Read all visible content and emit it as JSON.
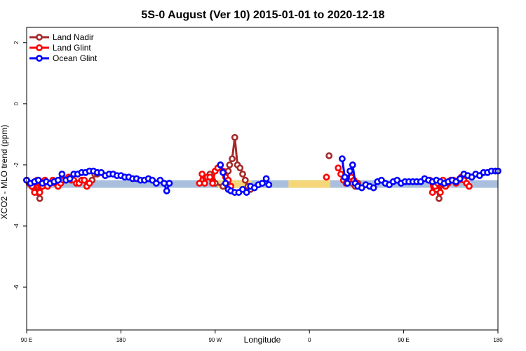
{
  "chart_data": {
    "type": "line",
    "title": "5S-0 August (Ver 10)   2015-01-01 to 2020-12-18",
    "xlabel": "Longitude",
    "ylabel": "XCO2 - MLO trend (ppm)",
    "xlim": [
      90,
      450
    ],
    "ylim": [
      -7.4,
      2.5
    ],
    "x_ticks": [
      {
        "value": 90,
        "label": "90 E"
      },
      {
        "value": 162,
        "label": "180"
      },
      {
        "value": 234,
        "label": "90 W"
      },
      {
        "value": 306,
        "label": "0"
      },
      {
        "value": 378,
        "label": "90 E"
      },
      {
        "value": 450,
        "label": "180"
      }
    ],
    "y_ticks": [
      {
        "value": 2,
        "label": "2"
      },
      {
        "value": 0,
        "label": "0"
      },
      {
        "value": -2,
        "label": "-2"
      },
      {
        "value": -4,
        "label": "-4"
      },
      {
        "value": -6,
        "label": "-6"
      }
    ],
    "bands": [
      {
        "x0": 90,
        "x1": 450,
        "y0": -2.75,
        "y1": -2.5,
        "color": "#a9bfdd"
      },
      {
        "x0": 236,
        "x1": 262,
        "y0": -2.75,
        "y1": -2.5,
        "color": "#f5d77a"
      },
      {
        "x0": 290,
        "x1": 322,
        "y0": -2.75,
        "y1": -2.5,
        "color": "#f5d77a"
      }
    ],
    "legend_position": "top-left",
    "grid": false,
    "series": [
      {
        "name": "Land Nadir",
        "color": "#a52a2a",
        "segments": [
          [
            [
              90,
              -2.5
            ],
            [
              92,
              -2.6
            ],
            [
              94,
              -2.7
            ],
            [
              96,
              -2.8
            ],
            [
              98,
              -2.9
            ],
            [
              100,
              -3.1
            ],
            [
              102,
              -2.7
            ],
            [
              104,
              -2.6
            ]
          ],
          [
            [
              140,
              -2.5
            ],
            [
              142,
              -2.3
            ],
            [
              144,
              -2.3
            ]
          ],
          [
            [
              230,
              -2.3
            ],
            [
              232,
              -2.5
            ],
            [
              234,
              -2.6
            ],
            [
              240,
              -2.7
            ],
            [
              243,
              -2.5
            ],
            [
              244,
              -2.2
            ],
            [
              245,
              -2.0
            ],
            [
              247,
              -1.8
            ],
            [
              249,
              -1.1
            ],
            [
              251,
              -2.0
            ],
            [
              253,
              -2.1
            ],
            [
              255,
              -2.3
            ],
            [
              257,
              -2.5
            ],
            [
              259,
              -2.7
            ],
            [
              261,
              -2.8
            ]
          ],
          [
            [
              321,
              -1.7
            ]
          ],
          [
            [
              335,
              -2.5
            ],
            [
              337,
              -2.4
            ],
            [
              339,
              -2.6
            ],
            [
              341,
              -2.7
            ],
            [
              343,
              -2.6
            ]
          ],
          [
            [
              403,
              -2.8
            ],
            [
              405,
              -3.1
            ],
            [
              407,
              -2.6
            ]
          ]
        ]
      },
      {
        "name": "Land Glint",
        "color": "#ff0000",
        "segments": [
          [
            [
              90,
              -2.5
            ],
            [
              92,
              -2.6
            ],
            [
              94,
              -2.7
            ],
            [
              96,
              -2.9
            ],
            [
              98,
              -2.5
            ],
            [
              100,
              -2.9
            ],
            [
              102,
              -2.7
            ],
            [
              104,
              -2.5
            ],
            [
              106,
              -2.7
            ],
            [
              108,
              -2.6
            ],
            [
              110,
              -2.5
            ],
            [
              112,
              -2.6
            ],
            [
              114,
              -2.7
            ],
            [
              116,
              -2.6
            ],
            [
              118,
              -2.5
            ],
            [
              120,
              -2.5
            ],
            [
              122,
              -2.4
            ],
            [
              124,
              -2.5
            ],
            [
              126,
              -2.5
            ],
            [
              128,
              -2.6
            ],
            [
              130,
              -2.6
            ],
            [
              132,
              -2.5
            ],
            [
              134,
              -2.5
            ],
            [
              136,
              -2.7
            ],
            [
              138,
              -2.6
            ]
          ],
          [
            [
              222,
              -2.6
            ],
            [
              224,
              -2.3
            ],
            [
              226,
              -2.6
            ],
            [
              228,
              -2.4
            ],
            [
              230,
              -2.4
            ],
            [
              232,
              -2.6
            ],
            [
              234,
              -2.2
            ],
            [
              236,
              -2.1
            ],
            [
              238,
              -2.0
            ],
            [
              240,
              -2.2
            ],
            [
              242,
              -2.4
            ],
            [
              244,
              -2.5
            ],
            [
              246,
              -2.7
            ]
          ],
          [
            [
              319,
              -2.4
            ]
          ],
          [
            [
              328,
              -2.1
            ],
            [
              330,
              -2.3
            ],
            [
              332,
              -2.5
            ],
            [
              334,
              -2.6
            ],
            [
              336,
              -2.5
            ],
            [
              338,
              -2.4
            ],
            [
              340,
              -2.5
            ],
            [
              342,
              -2.6
            ]
          ],
          [
            [
              398,
              -2.5
            ],
            [
              400,
              -2.9
            ],
            [
              402,
              -2.7
            ],
            [
              404,
              -2.6
            ],
            [
              406,
              -2.9
            ],
            [
              408,
              -2.5
            ],
            [
              410,
              -2.7
            ],
            [
              412,
              -2.6
            ],
            [
              414,
              -2.5
            ],
            [
              416,
              -2.5
            ],
            [
              418,
              -2.6
            ],
            [
              420,
              -2.5
            ],
            [
              422,
              -2.4
            ],
            [
              424,
              -2.5
            ],
            [
              426,
              -2.6
            ],
            [
              428,
              -2.7
            ]
          ]
        ]
      },
      {
        "name": "Ocean Glint",
        "color": "#0000ff",
        "segments": [
          [
            [
              90,
              -2.5
            ],
            [
              93,
              -2.6
            ],
            [
              96,
              -2.55
            ],
            [
              99,
              -2.5
            ],
            [
              102,
              -2.6
            ],
            [
              105,
              -2.55
            ],
            [
              108,
              -2.6
            ],
            [
              111,
              -2.55
            ],
            [
              114,
              -2.5
            ],
            [
              117,
              -2.3
            ],
            [
              120,
              -2.5
            ],
            [
              123,
              -2.45
            ],
            [
              126,
              -2.3
            ],
            [
              129,
              -2.3
            ],
            [
              132,
              -2.25
            ],
            [
              135,
              -2.25
            ],
            [
              138,
              -2.2
            ],
            [
              141,
              -2.2
            ],
            [
              144,
              -2.25
            ],
            [
              147,
              -2.25
            ],
            [
              150,
              -2.35
            ],
            [
              153,
              -2.3
            ],
            [
              156,
              -2.3
            ],
            [
              159,
              -2.35
            ],
            [
              162,
              -2.35
            ],
            [
              165,
              -2.4
            ],
            [
              168,
              -2.4
            ],
            [
              171,
              -2.45
            ],
            [
              174,
              -2.45
            ],
            [
              177,
              -2.5
            ],
            [
              180,
              -2.5
            ],
            [
              183,
              -2.45
            ],
            [
              186,
              -2.5
            ],
            [
              189,
              -2.6
            ],
            [
              192,
              -2.5
            ],
            [
              195,
              -2.6
            ],
            [
              197,
              -2.85
            ],
            [
              199,
              -2.6
            ]
          ],
          [
            [
              238,
              -2.0
            ],
            [
              240,
              -2.25
            ],
            [
              242,
              -2.6
            ],
            [
              244,
              -2.8
            ],
            [
              246,
              -2.85
            ],
            [
              249,
              -2.9
            ],
            [
              252,
              -2.9
            ],
            [
              255,
              -2.8
            ],
            [
              258,
              -2.9
            ],
            [
              261,
              -2.7
            ],
            [
              264,
              -2.75
            ],
            [
              267,
              -2.65
            ],
            [
              270,
              -2.6
            ],
            [
              273,
              -2.45
            ],
            [
              275,
              -2.65
            ]
          ],
          [
            [
              331,
              -1.8
            ],
            [
              333,
              -2.4
            ],
            [
              335,
              -2.6
            ],
            [
              337,
              -2.2
            ],
            [
              339,
              -2.0
            ],
            [
              341,
              -2.6
            ],
            [
              343,
              -2.7
            ],
            [
              346,
              -2.75
            ],
            [
              349,
              -2.65
            ],
            [
              352,
              -2.7
            ],
            [
              355,
              -2.75
            ],
            [
              358,
              -2.55
            ],
            [
              361,
              -2.5
            ],
            [
              364,
              -2.6
            ],
            [
              367,
              -2.65
            ],
            [
              370,
              -2.55
            ],
            [
              373,
              -2.5
            ],
            [
              376,
              -2.6
            ],
            [
              379,
              -2.55
            ],
            [
              382,
              -2.55
            ],
            [
              385,
              -2.55
            ],
            [
              388,
              -2.55
            ],
            [
              391,
              -2.55
            ],
            [
              394,
              -2.45
            ],
            [
              397,
              -2.5
            ],
            [
              400,
              -2.55
            ],
            [
              403,
              -2.5
            ],
            [
              406,
              -2.55
            ],
            [
              409,
              -2.6
            ],
            [
              412,
              -2.55
            ],
            [
              415,
              -2.5
            ],
            [
              418,
              -2.55
            ],
            [
              421,
              -2.45
            ],
            [
              424,
              -2.3
            ],
            [
              427,
              -2.35
            ],
            [
              430,
              -2.4
            ],
            [
              433,
              -2.3
            ],
            [
              436,
              -2.35
            ],
            [
              439,
              -2.25
            ],
            [
              442,
              -2.25
            ],
            [
              445,
              -2.2
            ],
            [
              448,
              -2.2
            ],
            [
              450,
              -2.2
            ]
          ]
        ]
      }
    ]
  }
}
